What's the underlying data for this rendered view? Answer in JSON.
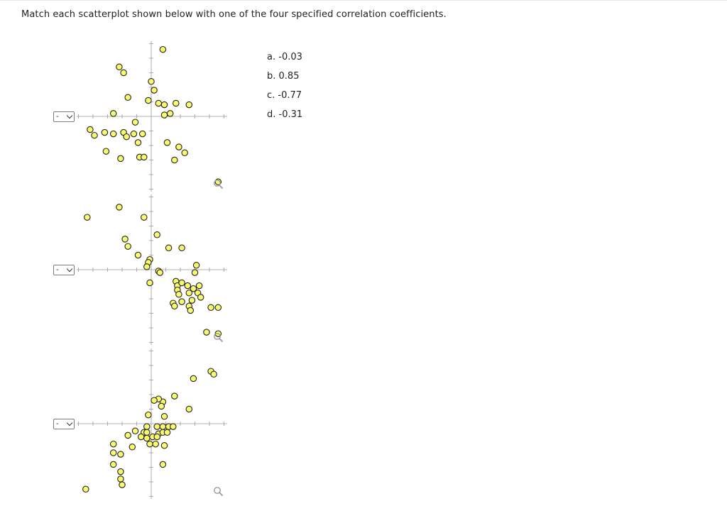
{
  "question": "Match each scatterplot shown below with one of the four specified correlation coefficients.",
  "options": [
    {
      "letter": "a.",
      "value": "-0.03"
    },
    {
      "letter": "b.",
      "value": "0.85"
    },
    {
      "letter": "c.",
      "value": "-0.77"
    },
    {
      "letter": "d.",
      "value": "-0.31"
    }
  ],
  "select_value": "-",
  "marker": {
    "fill": "#fafa6e",
    "stroke": "#222222"
  },
  "icons": {
    "zoom": "magnifier-icon",
    "dropdown": "chevron-down-icon"
  },
  "chart_data": [
    {
      "type": "scatter",
      "xlim": [
        -5,
        5
      ],
      "ylim": [
        -5,
        5
      ],
      "points": [
        [
          0.8,
          4.6
        ],
        [
          -2.2,
          3.4
        ],
        [
          -1.9,
          3.0
        ],
        [
          0,
          2.4
        ],
        [
          0.2,
          1.8
        ],
        [
          -1.6,
          1.3
        ],
        [
          -0.2,
          1.1
        ],
        [
          0.5,
          0.9
        ],
        [
          0.9,
          0.8
        ],
        [
          1.7,
          0.9
        ],
        [
          2.6,
          0.8
        ],
        [
          0.9,
          0.1
        ],
        [
          1.3,
          0.2
        ],
        [
          -2.6,
          0.2
        ],
        [
          -1.1,
          -0.4
        ],
        [
          -4.2,
          -0.9
        ],
        [
          -3.9,
          -1.3
        ],
        [
          -3.2,
          -1.1
        ],
        [
          -2.6,
          -1.2
        ],
        [
          -1.9,
          -1.1
        ],
        [
          -1.7,
          -1.4
        ],
        [
          -1.2,
          -1.2
        ],
        [
          -0.6,
          -1.2
        ],
        [
          -0.9,
          -1.8
        ],
        [
          1.1,
          -1.8
        ],
        [
          1.9,
          -2.1
        ],
        [
          2.3,
          -2.5
        ],
        [
          -3.1,
          -2.4
        ],
        [
          -2.1,
          -2.9
        ],
        [
          -0.8,
          -2.8
        ],
        [
          -0.5,
          -2.8
        ],
        [
          1.6,
          -3.0
        ],
        [
          4.6,
          -4.5
        ]
      ]
    },
    {
      "type": "scatter",
      "xlim": [
        -5,
        5
      ],
      "ylim": [
        -5,
        5
      ],
      "points": [
        [
          -4.4,
          3.6
        ],
        [
          -2.2,
          4.3
        ],
        [
          -0.5,
          3.6
        ],
        [
          0.4,
          2.4
        ],
        [
          -1.8,
          2.1
        ],
        [
          -1.6,
          1.6
        ],
        [
          -0.9,
          1.0
        ],
        [
          1.2,
          1.5
        ],
        [
          2.1,
          1.5
        ],
        [
          3.1,
          0.3
        ],
        [
          -0.1,
          0.7
        ],
        [
          -0.2,
          0.5
        ],
        [
          -0.3,
          0.2
        ],
        [
          0.5,
          -0.1
        ],
        [
          0.6,
          -0.2
        ],
        [
          3.0,
          -0.2
        ],
        [
          -0.1,
          -0.9
        ],
        [
          1.7,
          -0.8
        ],
        [
          1.8,
          -1.1
        ],
        [
          2.1,
          -0.9
        ],
        [
          2.5,
          -1.1
        ],
        [
          2.9,
          -1.3
        ],
        [
          3.3,
          -1.1
        ],
        [
          1.8,
          -1.4
        ],
        [
          2.6,
          -1.6
        ],
        [
          3.2,
          -1.6
        ],
        [
          1.9,
          -1.7
        ],
        [
          3.4,
          -1.9
        ],
        [
          2.1,
          -2.2
        ],
        [
          2.8,
          -2.1
        ],
        [
          2.6,
          -2.5
        ],
        [
          1.5,
          -2.3
        ],
        [
          1.6,
          -2.5
        ],
        [
          2.7,
          -2.8
        ],
        [
          4.1,
          -2.6
        ],
        [
          4.6,
          -2.6
        ],
        [
          3.8,
          -4.3
        ],
        [
          4.6,
          -4.4
        ]
      ]
    },
    {
      "type": "scatter",
      "xlim": [
        -5,
        5
      ],
      "ylim": [
        -5,
        5
      ],
      "points": [
        [
          4.1,
          3.6
        ],
        [
          4.3,
          3.4
        ],
        [
          2.9,
          3.1
        ],
        [
          1.6,
          1.9
        ],
        [
          0.8,
          1.5
        ],
        [
          0.5,
          1.7
        ],
        [
          0.2,
          1.6
        ],
        [
          0.7,
          1.2
        ],
        [
          -0.2,
          0.6
        ],
        [
          2.6,
          1.0
        ],
        [
          0.9,
          0.5
        ],
        [
          -0.3,
          -0.2
        ],
        [
          0.4,
          -0.2
        ],
        [
          0.8,
          -0.2
        ],
        [
          1.2,
          -0.2
        ],
        [
          1.5,
          -0.2
        ],
        [
          -1.1,
          -0.5
        ],
        [
          -0.5,
          -0.6
        ],
        [
          -0.3,
          -0.6
        ],
        [
          0.5,
          -0.7
        ],
        [
          0.8,
          -0.6
        ],
        [
          1.1,
          -0.6
        ],
        [
          -0.7,
          -0.9
        ],
        [
          -0.3,
          -1.0
        ],
        [
          0.1,
          -0.9
        ],
        [
          0.4,
          -0.9
        ],
        [
          -1.6,
          -0.8
        ],
        [
          -0.1,
          -1.4
        ],
        [
          0.3,
          -1.4
        ],
        [
          0.9,
          -1.5
        ],
        [
          -2.6,
          -1.4
        ],
        [
          -1.3,
          -1.6
        ],
        [
          -2.6,
          -2.0
        ],
        [
          -2.1,
          -2.1
        ],
        [
          -2.6,
          -2.8
        ],
        [
          -2.1,
          -3.3
        ],
        [
          -2.1,
          -3.8
        ],
        [
          -2.0,
          -4.2
        ],
        [
          -4.5,
          -4.5
        ],
        [
          0.8,
          -2.8
        ]
      ]
    }
  ]
}
